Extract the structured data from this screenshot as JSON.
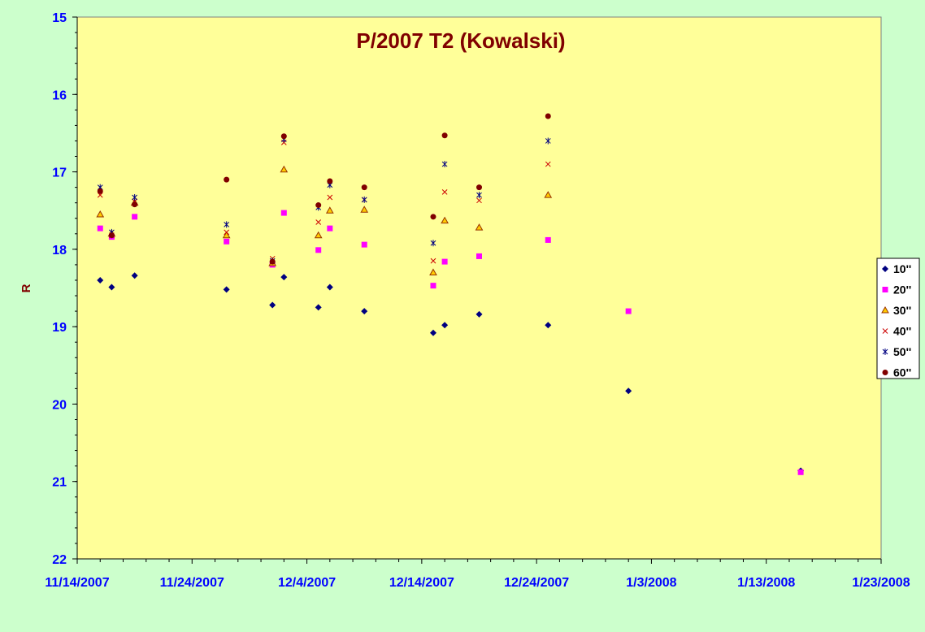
{
  "chart_data": {
    "type": "scatter",
    "title": "P/2007 T2 (Kowalski)",
    "xlabel": "",
    "ylabel": "R",
    "y_reversed": true,
    "ylim": [
      15,
      22
    ],
    "y_ticks": [
      "15",
      "16",
      "17",
      "18",
      "19",
      "20",
      "21",
      "22"
    ],
    "xlim": [
      "2007-11-14",
      "2008-01-23"
    ],
    "x_ticks": [
      "11/14/2007",
      "11/24/2007",
      "12/4/2007",
      "12/14/2007",
      "12/24/2007",
      "1/3/2008",
      "1/13/2008",
      "1/23/2008"
    ],
    "grid": false,
    "legend_position": "right",
    "colors": {
      "page_background": "#ccffcc",
      "plot_background": "#ffff99",
      "title": "#800000",
      "axis_labels": "#0000ff",
      "ylabel": "#800000"
    },
    "series": [
      {
        "name": "10''",
        "marker": "diamond",
        "color": "#000080",
        "points": [
          [
            "2007-11-16",
            18.4
          ],
          [
            "2007-11-17",
            18.49
          ],
          [
            "2007-11-19",
            18.34
          ],
          [
            "2007-11-27",
            18.52
          ],
          [
            "2007-12-01",
            18.72
          ],
          [
            "2007-12-02",
            18.36
          ],
          [
            "2007-12-05",
            18.75
          ],
          [
            "2007-12-06",
            18.49
          ],
          [
            "2007-12-09",
            18.8
          ],
          [
            "2007-12-15",
            19.08
          ],
          [
            "2007-12-16",
            18.98
          ],
          [
            "2007-12-19",
            18.84
          ],
          [
            "2007-12-25",
            18.98
          ],
          [
            "2008-01-01",
            19.83
          ],
          [
            "2008-01-16",
            20.86
          ]
        ]
      },
      {
        "name": "20''",
        "marker": "square",
        "color": "#ff00ff",
        "points": [
          [
            "2007-11-16",
            17.73
          ],
          [
            "2007-11-17",
            17.84
          ],
          [
            "2007-11-19",
            17.58
          ],
          [
            "2007-11-27",
            17.9
          ],
          [
            "2007-12-01",
            18.2
          ],
          [
            "2007-12-02",
            17.53
          ],
          [
            "2007-12-05",
            18.01
          ],
          [
            "2007-12-06",
            17.73
          ],
          [
            "2007-12-09",
            17.94
          ],
          [
            "2007-12-15",
            18.47
          ],
          [
            "2007-12-16",
            18.16
          ],
          [
            "2007-12-19",
            18.09
          ],
          [
            "2007-12-25",
            17.88
          ],
          [
            "2008-01-01",
            18.8
          ],
          [
            "2008-01-16",
            20.88
          ]
        ]
      },
      {
        "name": "30''",
        "marker": "triangle",
        "color": "#ffff99",
        "stroke": "#993300",
        "fill": "#ffcc00",
        "points": [
          [
            "2007-11-16",
            17.55
          ],
          [
            "2007-11-17",
            17.8
          ],
          [
            "2007-11-19",
            17.4
          ],
          [
            "2007-11-27",
            17.82
          ],
          [
            "2007-12-01",
            18.18
          ],
          [
            "2007-12-02",
            16.97
          ],
          [
            "2007-12-05",
            17.82
          ],
          [
            "2007-12-06",
            17.5
          ],
          [
            "2007-12-09",
            17.49
          ],
          [
            "2007-12-15",
            18.3
          ],
          [
            "2007-12-16",
            17.63
          ],
          [
            "2007-12-19",
            17.72
          ],
          [
            "2007-12-25",
            17.3
          ]
        ]
      },
      {
        "name": "40''",
        "marker": "x",
        "color": "#cc0000",
        "points": [
          [
            "2007-11-16",
            17.3
          ],
          [
            "2007-11-17",
            17.82
          ],
          [
            "2007-11-19",
            17.38
          ],
          [
            "2007-11-27",
            17.78
          ],
          [
            "2007-12-01",
            18.12
          ],
          [
            "2007-12-02",
            16.62
          ],
          [
            "2007-12-05",
            17.65
          ],
          [
            "2007-12-06",
            17.33
          ],
          [
            "2007-12-09",
            17.36
          ],
          [
            "2007-12-15",
            18.15
          ],
          [
            "2007-12-16",
            17.26
          ],
          [
            "2007-12-19",
            17.37
          ],
          [
            "2007-12-25",
            16.9
          ]
        ]
      },
      {
        "name": "50''",
        "marker": "star",
        "color": "#000080",
        "points": [
          [
            "2007-11-16",
            17.2
          ],
          [
            "2007-11-17",
            17.78
          ],
          [
            "2007-11-19",
            17.33
          ],
          [
            "2007-11-27",
            17.68
          ],
          [
            "2007-12-01",
            18.15
          ],
          [
            "2007-12-02",
            16.58
          ],
          [
            "2007-12-05",
            17.46
          ],
          [
            "2007-12-06",
            17.17
          ],
          [
            "2007-12-09",
            17.36
          ],
          [
            "2007-12-15",
            17.92
          ],
          [
            "2007-12-16",
            16.9
          ],
          [
            "2007-12-19",
            17.3
          ],
          [
            "2007-12-25",
            16.6
          ]
        ]
      },
      {
        "name": "60''",
        "marker": "circle",
        "color": "#800000",
        "points": [
          [
            "2007-11-16",
            17.25
          ],
          [
            "2007-11-17",
            17.82
          ],
          [
            "2007-11-19",
            17.42
          ],
          [
            "2007-11-27",
            17.1
          ],
          [
            "2007-12-01",
            18.16
          ],
          [
            "2007-12-02",
            16.54
          ],
          [
            "2007-12-05",
            17.43
          ],
          [
            "2007-12-06",
            17.12
          ],
          [
            "2007-12-09",
            17.2
          ],
          [
            "2007-12-15",
            17.58
          ],
          [
            "2007-12-16",
            16.53
          ],
          [
            "2007-12-19",
            17.2
          ],
          [
            "2007-12-25",
            16.28
          ]
        ]
      }
    ]
  }
}
